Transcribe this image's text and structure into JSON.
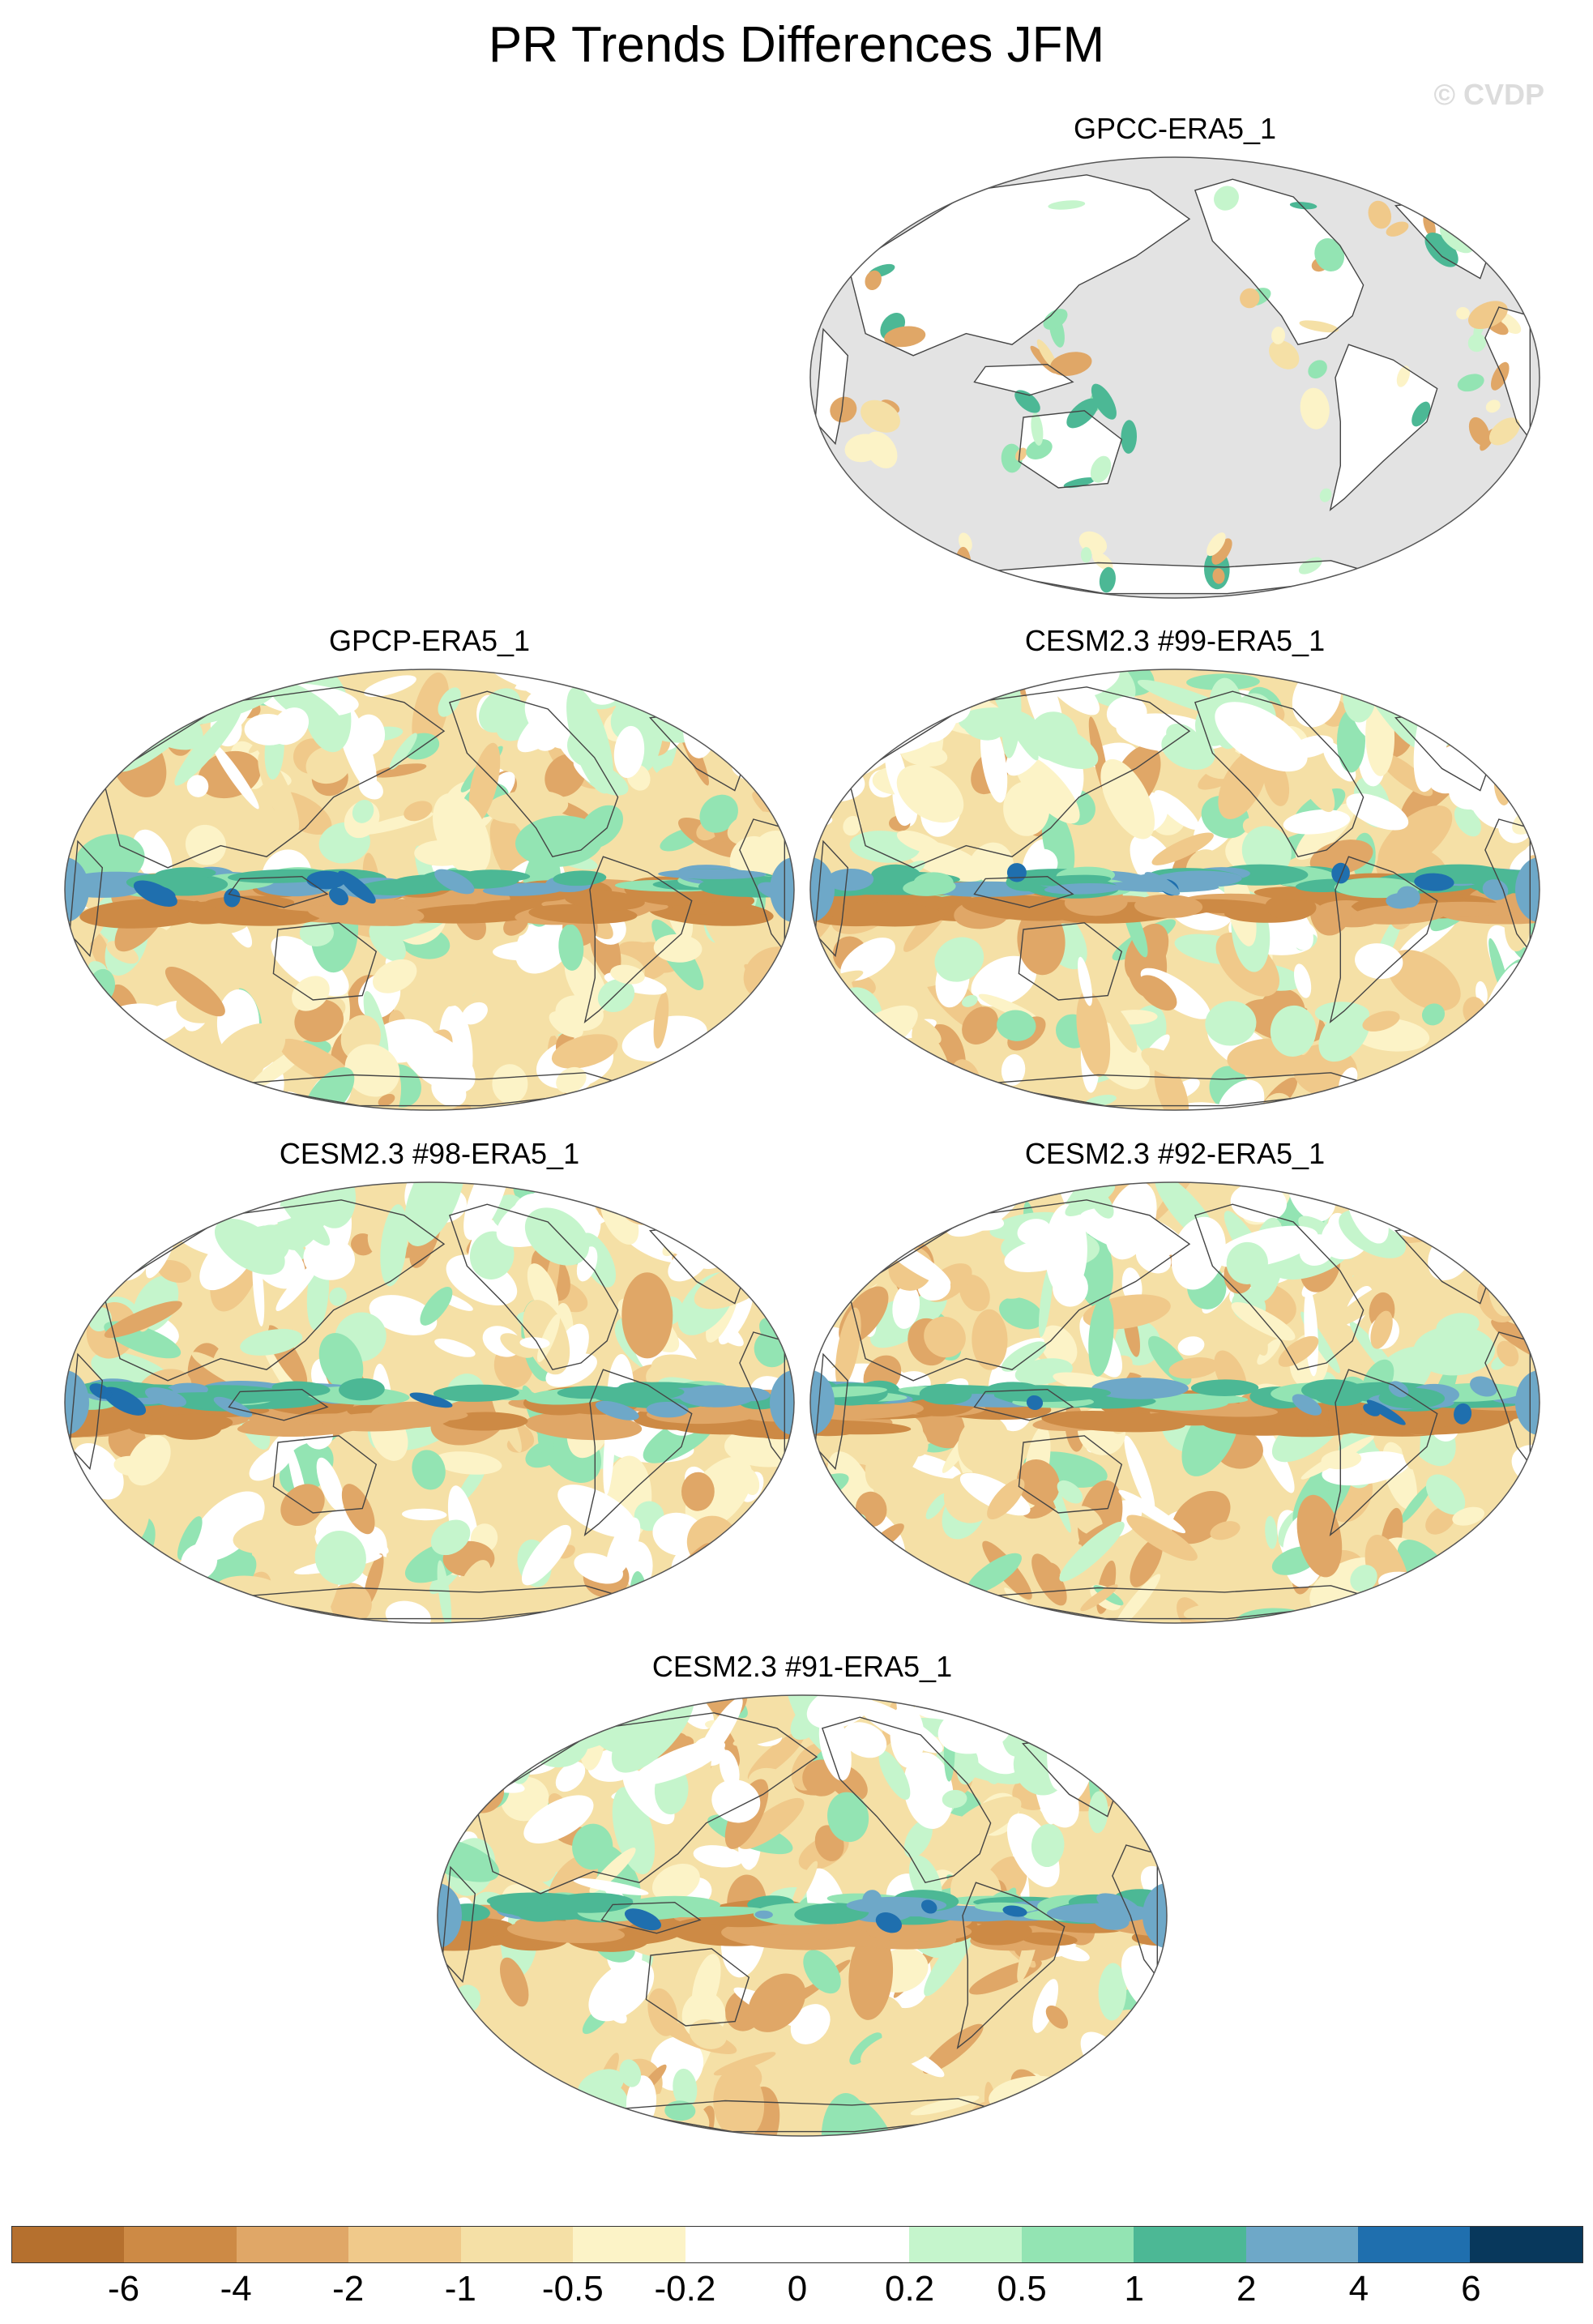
{
  "title": "PR Trends Differences JFM",
  "watermark": "© CVDP",
  "panels": [
    {
      "id": "gpcc",
      "title": "GPCC-ERA5_1",
      "land_only": true
    },
    {
      "id": "gpcp",
      "title": "GPCP-ERA5_1",
      "land_only": false
    },
    {
      "id": "cesm99",
      "title": "CESM2.3 #99-ERA5_1",
      "land_only": false
    },
    {
      "id": "cesm98",
      "title": "CESM2.3 #98-ERA5_1",
      "land_only": false
    },
    {
      "id": "cesm92",
      "title": "CESM2.3 #92-ERA5_1",
      "land_only": false
    },
    {
      "id": "cesm91",
      "title": "CESM2.3 #91-ERA5_1",
      "land_only": false
    }
  ],
  "colorbar": {
    "colors": [
      "#b5702e",
      "#cd8a45",
      "#e0a767",
      "#f0c98a",
      "#f5e0a6",
      "#fcf3c7",
      "#ffffff",
      "#ffffff",
      "#c5f5cc",
      "#93e4b3",
      "#4cb895",
      "#6ea8c8",
      "#1f6fae",
      "#08385c"
    ],
    "labels": [
      "-6",
      "-4",
      "-2",
      "-1",
      "-0.5",
      "-0.2",
      "0",
      "0.2",
      "0.5",
      "1",
      "2",
      "4",
      "6"
    ]
  },
  "legend_colors": {
    "ocean_masked": "#e3e3e3",
    "coast": "#444444"
  }
}
